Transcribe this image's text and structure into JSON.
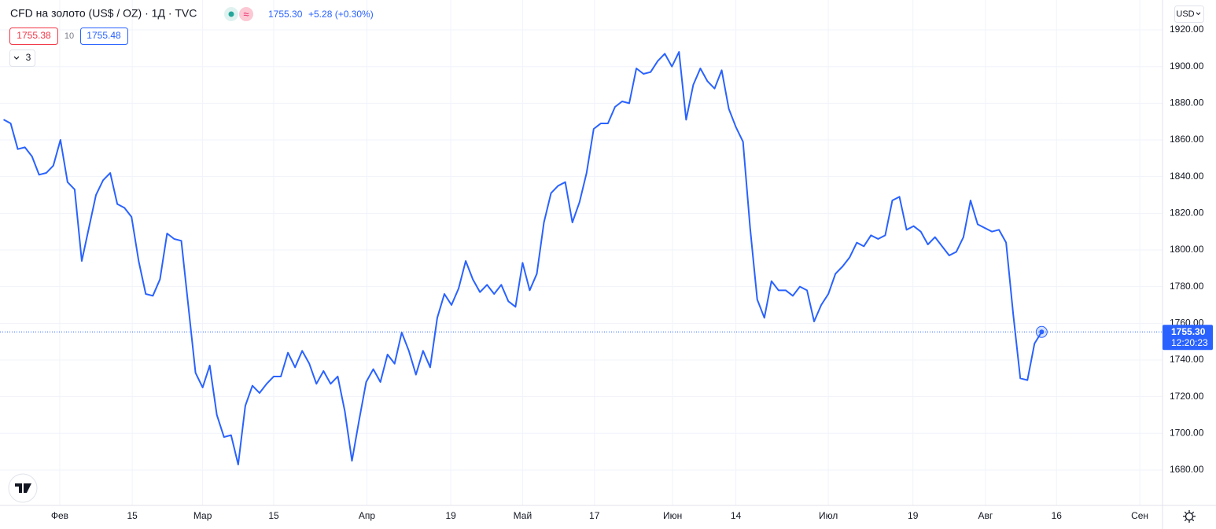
{
  "header": {
    "title": "CFD на золото (US$ / OZ) · 1Д · TVC",
    "price": "1755.30",
    "change": "+5.28 (+0.30%)",
    "bid": "1755.38",
    "spread": "10",
    "ask": "1755.48",
    "indicators": "3",
    "currency": "USD",
    "countdown": "12:20:23"
  },
  "chart_data": {
    "type": "line",
    "x": [
      0,
      1,
      2,
      3,
      4,
      5,
      6,
      7,
      8,
      9,
      10,
      11,
      12,
      13,
      14,
      15,
      16,
      17,
      18,
      19,
      20,
      21,
      22,
      23,
      24,
      25,
      26,
      27,
      28,
      29,
      30,
      31,
      32,
      33,
      34,
      35,
      36,
      37,
      38,
      39,
      40,
      41,
      42,
      43,
      44,
      45,
      46,
      47,
      48,
      49,
      50,
      51,
      52,
      53,
      54,
      55,
      56,
      57,
      58,
      59,
      60,
      61,
      62,
      63,
      64,
      65,
      66,
      67,
      68,
      69,
      70,
      71,
      72,
      73,
      74,
      75,
      76,
      77,
      78,
      79,
      80,
      81,
      82,
      83,
      84,
      85,
      86,
      87,
      88,
      89,
      90,
      91,
      92,
      93,
      94,
      95,
      96,
      97,
      98,
      99,
      100,
      101,
      102,
      103,
      104,
      105,
      106,
      107,
      108,
      109,
      110,
      111,
      112,
      113,
      114,
      115,
      116,
      117,
      118,
      119,
      120,
      121,
      122,
      123,
      124,
      125,
      126,
      127,
      128,
      129,
      130,
      131,
      132,
      133,
      134,
      135,
      136,
      137,
      138,
      139,
      140,
      141,
      142,
      143,
      144,
      145,
      146
    ],
    "series": [
      {
        "color": "#2962ff",
        "values": [
          1871.1,
          1869,
          1855,
          1856,
          1851,
          1841,
          1842,
          1846,
          1860,
          1837,
          1833,
          1794,
          1812,
          1830,
          1838,
          1842,
          1825,
          1823,
          1818,
          1794,
          1776,
          1775,
          1784,
          1809,
          1806,
          1805,
          1769,
          1733,
          1725,
          1737,
          1710,
          1698,
          1699,
          1683,
          1715,
          1726,
          1722,
          1727,
          1731,
          1731,
          1744,
          1736,
          1745,
          1738,
          1727,
          1734,
          1727,
          1731,
          1712,
          1685,
          1707,
          1728,
          1735,
          1728,
          1743,
          1738,
          1755,
          1745,
          1732,
          1745,
          1736,
          1763,
          1776,
          1770,
          1779,
          1794,
          1784,
          1777,
          1781,
          1776,
          1781,
          1772,
          1769,
          1793,
          1778,
          1787,
          1815,
          1831,
          1835,
          1837,
          1815,
          1826,
          1842,
          1866,
          1869,
          1869,
          1878,
          1881,
          1880,
          1899,
          1896,
          1897,
          1903,
          1907,
          1900,
          1908,
          1871,
          1890,
          1899,
          1892,
          1888,
          1898,
          1877,
          1867,
          1859,
          1812,
          1773,
          1763,
          1783,
          1778,
          1778,
          1775,
          1780,
          1778,
          1761,
          1770,
          1776,
          1787,
          1791,
          1796,
          1804,
          1802,
          1808,
          1806,
          1808,
          1827,
          1829,
          1811,
          1813,
          1810,
          1803,
          1807,
          1802,
          1797,
          1799,
          1807,
          1827,
          1814,
          1812,
          1810,
          1811,
          1804,
          1765,
          1730,
          1729,
          1749,
          1755.3
        ]
      }
    ],
    "xlim": [
      -0.5,
      163
    ],
    "xticks": [
      {
        "value": 7.9,
        "label": "Фев"
      },
      {
        "value": 18.1,
        "label": "15"
      },
      {
        "value": 28.0,
        "label": "Мар"
      },
      {
        "value": 38.0,
        "label": "15"
      },
      {
        "value": 51.1,
        "label": "Апр"
      },
      {
        "value": 62.9,
        "label": "19"
      },
      {
        "value": 73.0,
        "label": "Май"
      },
      {
        "value": 83.1,
        "label": "17"
      },
      {
        "value": 94.1,
        "label": "Июн"
      },
      {
        "value": 103.0,
        "label": "14"
      },
      {
        "value": 116.0,
        "label": "Июл"
      },
      {
        "value": 127.9,
        "label": "19"
      },
      {
        "value": 138.1,
        "label": "Авг"
      },
      {
        "value": 148.1,
        "label": "16"
      },
      {
        "value": 159.8,
        "label": "Сен"
      }
    ],
    "ylim": [
      1660.7,
      1936.3
    ],
    "yticks": [
      {
        "value": 1680,
        "label": "1680.00"
      },
      {
        "value": 1700,
        "label": "1700.00"
      },
      {
        "value": 1720,
        "label": "1720.00"
      },
      {
        "value": 1740,
        "label": "1740.00"
      },
      {
        "value": 1760,
        "label": "1760.00"
      },
      {
        "value": 1780,
        "label": "1780.00"
      },
      {
        "value": 1800,
        "label": "1800.00"
      },
      {
        "value": 1820,
        "label": "1820.00"
      },
      {
        "value": 1840,
        "label": "1840.00"
      },
      {
        "value": 1860,
        "label": "1860.00"
      },
      {
        "value": 1880,
        "label": "1880.00"
      },
      {
        "value": 1900,
        "label": "1900.00"
      },
      {
        "value": 1920,
        "label": "1920.00"
      }
    ],
    "grid": true
  }
}
